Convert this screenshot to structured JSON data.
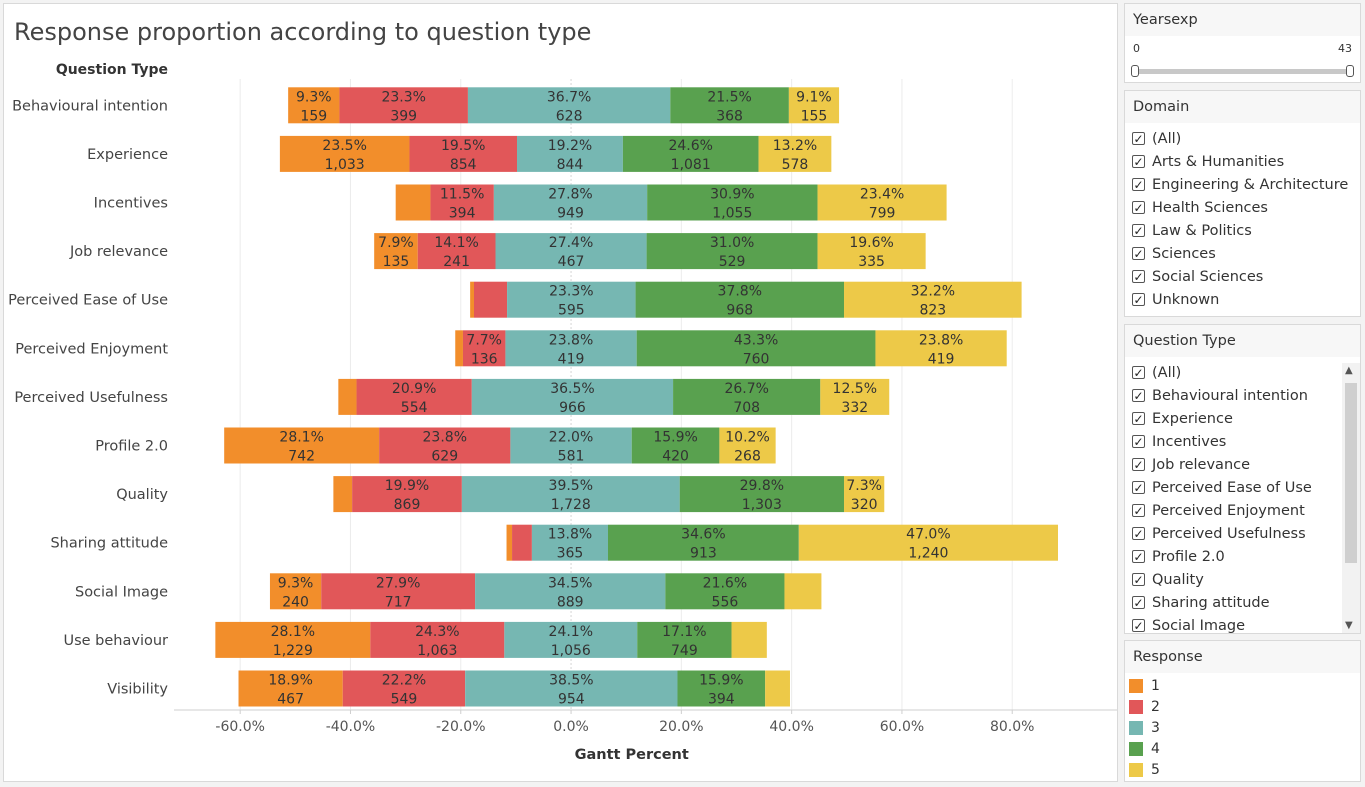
{
  "title": "Response proportion according to question type",
  "filters": {
    "yearsexp": {
      "title": "Yearsexp",
      "min_label": "0",
      "max_label": "43"
    },
    "domain": {
      "title": "Domain",
      "options": [
        "(All)",
        "Arts & Humanities",
        "Engineering & Architecture",
        "Health Sciences",
        "Law & Politics",
        "Sciences",
        "Social Sciences",
        "Unknown"
      ]
    },
    "question_type": {
      "title": "Question Type",
      "options": [
        "(All)",
        "Behavioural intention",
        "Experience",
        "Incentives",
        "Job relevance",
        "Perceived Ease of Use",
        "Perceived Enjoyment",
        "Perceived Usefulness",
        "Profile 2.0",
        "Quality",
        "Sharing attitude",
        "Social Image"
      ]
    },
    "response": {
      "title": "Response",
      "items": [
        {
          "label": "1",
          "color": "#f28e2b"
        },
        {
          "label": "2",
          "color": "#e15759"
        },
        {
          "label": "3",
          "color": "#76b7b2"
        },
        {
          "label": "4",
          "color": "#59a14f"
        },
        {
          "label": "5",
          "color": "#edc948"
        }
      ]
    }
  },
  "chart_data": {
    "type": "bar",
    "orientation": "horizontal",
    "stacked": "diverging",
    "title": "Response proportion according to question type",
    "row_header": "Question Type",
    "xlabel": "Gantt Percent",
    "xlim": [
      -72,
      99
    ],
    "xticks": [
      -60,
      -40,
      -20,
      0,
      20,
      40,
      60,
      80
    ],
    "xtick_labels": [
      "-60.0%",
      "-40.0%",
      "-20.0%",
      "0.0%",
      "20.0%",
      "40.0%",
      "60.0%",
      "80.0%"
    ],
    "series_colors": [
      "#f28e2b",
      "#e15759",
      "#76b7b2",
      "#59a14f",
      "#edc948"
    ],
    "categories": [
      "Behavioural intention",
      "Experience",
      "Incentives",
      "Job relevance",
      "Perceived Ease of Use",
      "Perceived Enjoyment",
      "Perceived Usefulness",
      "Profile 2.0",
      "Quality",
      "Sharing attitude",
      "Social Image",
      "Use behaviour",
      "Visibility"
    ],
    "rows": [
      {
        "category": "Behavioural intention",
        "start": -51.3,
        "segments": [
          {
            "pct": 9.3,
            "pct_label": "9.3%",
            "count_label": "159"
          },
          {
            "pct": 23.3,
            "pct_label": "23.3%",
            "count_label": "399"
          },
          {
            "pct": 36.7,
            "pct_label": "36.7%",
            "count_label": "628"
          },
          {
            "pct": 21.5,
            "pct_label": "21.5%",
            "count_label": "368"
          },
          {
            "pct": 9.1,
            "pct_label": "9.1%",
            "count_label": "155"
          }
        ]
      },
      {
        "category": "Experience",
        "start": -52.8,
        "segments": [
          {
            "pct": 23.5,
            "pct_label": "23.5%",
            "count_label": "1,033"
          },
          {
            "pct": 19.5,
            "pct_label": "19.5%",
            "count_label": "854"
          },
          {
            "pct": 19.2,
            "pct_label": "19.2%",
            "count_label": "844"
          },
          {
            "pct": 24.6,
            "pct_label": "24.6%",
            "count_label": "1,081"
          },
          {
            "pct": 13.2,
            "pct_label": "13.2%",
            "count_label": "578"
          }
        ]
      },
      {
        "category": "Incentives",
        "start": -31.8,
        "segments": [
          {
            "pct": 6.3,
            "pct_label": "",
            "count_label": ""
          },
          {
            "pct": 11.5,
            "pct_label": "11.5%",
            "count_label": "394"
          },
          {
            "pct": 27.8,
            "pct_label": "27.8%",
            "count_label": "949"
          },
          {
            "pct": 30.9,
            "pct_label": "30.9%",
            "count_label": "1,055"
          },
          {
            "pct": 23.4,
            "pct_label": "23.4%",
            "count_label": "799"
          }
        ]
      },
      {
        "category": "Job relevance",
        "start": -35.7,
        "segments": [
          {
            "pct": 7.9,
            "pct_label": "7.9%",
            "count_label": "135"
          },
          {
            "pct": 14.1,
            "pct_label": "14.1%",
            "count_label": "241"
          },
          {
            "pct": 27.4,
            "pct_label": "27.4%",
            "count_label": "467"
          },
          {
            "pct": 31.0,
            "pct_label": "31.0%",
            "count_label": "529"
          },
          {
            "pct": 19.6,
            "pct_label": "19.6%",
            "count_label": "335"
          }
        ]
      },
      {
        "category": "Perceived Ease of Use",
        "start": -18.3,
        "segments": [
          {
            "pct": 0.7,
            "pct_label": "",
            "count_label": ""
          },
          {
            "pct": 6.0,
            "pct_label": "",
            "count_label": ""
          },
          {
            "pct": 23.3,
            "pct_label": "23.3%",
            "count_label": "595"
          },
          {
            "pct": 37.8,
            "pct_label": "37.8%",
            "count_label": "968"
          },
          {
            "pct": 32.2,
            "pct_label": "32.2%",
            "count_label": "823"
          }
        ]
      },
      {
        "category": "Perceived Enjoyment",
        "start": -21.0,
        "segments": [
          {
            "pct": 1.4,
            "pct_label": "",
            "count_label": ""
          },
          {
            "pct": 7.7,
            "pct_label": "7.7%",
            "count_label": "136"
          },
          {
            "pct": 23.8,
            "pct_label": "23.8%",
            "count_label": "419"
          },
          {
            "pct": 43.3,
            "pct_label": "43.3%",
            "count_label": "760"
          },
          {
            "pct": 23.8,
            "pct_label": "23.8%",
            "count_label": "419"
          }
        ]
      },
      {
        "category": "Perceived Usefulness",
        "start": -42.2,
        "segments": [
          {
            "pct": 3.3,
            "pct_label": "",
            "count_label": ""
          },
          {
            "pct": 20.9,
            "pct_label": "20.9%",
            "count_label": "554"
          },
          {
            "pct": 36.5,
            "pct_label": "36.5%",
            "count_label": "966"
          },
          {
            "pct": 26.7,
            "pct_label": "26.7%",
            "count_label": "708"
          },
          {
            "pct": 12.5,
            "pct_label": "12.5%",
            "count_label": "332"
          }
        ]
      },
      {
        "category": "Profile 2.0",
        "start": -62.9,
        "segments": [
          {
            "pct": 28.1,
            "pct_label": "28.1%",
            "count_label": "742"
          },
          {
            "pct": 23.8,
            "pct_label": "23.8%",
            "count_label": "629"
          },
          {
            "pct": 22.0,
            "pct_label": "22.0%",
            "count_label": "581"
          },
          {
            "pct": 15.9,
            "pct_label": "15.9%",
            "count_label": "420"
          },
          {
            "pct": 10.2,
            "pct_label": "10.2%",
            "count_label": "268"
          }
        ]
      },
      {
        "category": "Quality",
        "start": -43.1,
        "segments": [
          {
            "pct": 3.4,
            "pct_label": "",
            "count_label": ""
          },
          {
            "pct": 19.9,
            "pct_label": "19.9%",
            "count_label": "869"
          },
          {
            "pct": 39.5,
            "pct_label": "39.5%",
            "count_label": "1,728"
          },
          {
            "pct": 29.8,
            "pct_label": "29.8%",
            "count_label": "1,303"
          },
          {
            "pct": 7.3,
            "pct_label": "7.3%",
            "count_label": "320"
          }
        ]
      },
      {
        "category": "Sharing attitude",
        "start": -11.7,
        "segments": [
          {
            "pct": 1.0,
            "pct_label": "",
            "count_label": ""
          },
          {
            "pct": 3.6,
            "pct_label": "",
            "count_label": ""
          },
          {
            "pct": 13.8,
            "pct_label": "13.8%",
            "count_label": "365"
          },
          {
            "pct": 34.6,
            "pct_label": "34.6%",
            "count_label": "913"
          },
          {
            "pct": 47.0,
            "pct_label": "47.0%",
            "count_label": "1,240"
          }
        ]
      },
      {
        "category": "Social Image",
        "start": -54.6,
        "segments": [
          {
            "pct": 9.3,
            "pct_label": "9.3%",
            "count_label": "240"
          },
          {
            "pct": 27.9,
            "pct_label": "27.9%",
            "count_label": "717"
          },
          {
            "pct": 34.5,
            "pct_label": "34.5%",
            "count_label": "889"
          },
          {
            "pct": 21.6,
            "pct_label": "21.6%",
            "count_label": "556"
          },
          {
            "pct": 6.7,
            "pct_label": "",
            "count_label": ""
          }
        ]
      },
      {
        "category": "Use behaviour",
        "start": -64.5,
        "segments": [
          {
            "pct": 28.1,
            "pct_label": "28.1%",
            "count_label": "1,229"
          },
          {
            "pct": 24.3,
            "pct_label": "24.3%",
            "count_label": "1,063"
          },
          {
            "pct": 24.1,
            "pct_label": "24.1%",
            "count_label": "1,056"
          },
          {
            "pct": 17.1,
            "pct_label": "17.1%",
            "count_label": "749"
          },
          {
            "pct": 6.4,
            "pct_label": "",
            "count_label": ""
          }
        ]
      },
      {
        "category": "Visibility",
        "start": -60.3,
        "segments": [
          {
            "pct": 18.9,
            "pct_label": "18.9%",
            "count_label": "467"
          },
          {
            "pct": 22.2,
            "pct_label": "22.2%",
            "count_label": "549"
          },
          {
            "pct": 38.5,
            "pct_label": "38.5%",
            "count_label": "954"
          },
          {
            "pct": 15.9,
            "pct_label": "15.9%",
            "count_label": "394"
          },
          {
            "pct": 4.5,
            "pct_label": "",
            "count_label": ""
          }
        ]
      }
    ]
  }
}
